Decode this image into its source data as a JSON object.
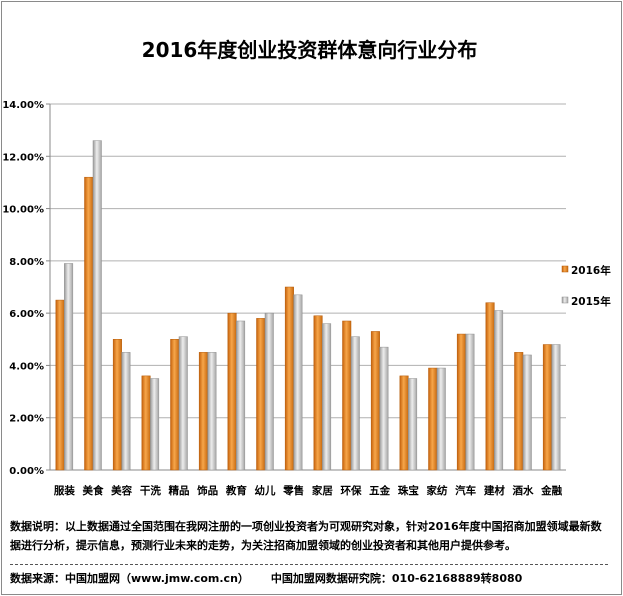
{
  "chart_data": {
    "type": "bar",
    "title": "2016年度创业投资群体意向行业分布",
    "categories": [
      "服装",
      "美食",
      "美容",
      "干洗",
      "精品",
      "饰品",
      "教育",
      "幼儿",
      "零售",
      "家居",
      "环保",
      "五金",
      "珠宝",
      "家纺",
      "汽车",
      "建材",
      "酒水",
      "金融"
    ],
    "series": [
      {
        "name": "2016年",
        "color": "#e8841c",
        "values": [
          6.5,
          11.2,
          5.0,
          3.6,
          5.0,
          4.5,
          6.0,
          5.8,
          7.0,
          5.9,
          5.7,
          5.3,
          3.6,
          3.9,
          5.2,
          6.4,
          4.5,
          4.8
        ]
      },
      {
        "name": "2015年",
        "color": "#b4b4b4",
        "values": [
          7.9,
          12.6,
          4.5,
          3.5,
          5.1,
          4.5,
          5.7,
          6.0,
          6.7,
          5.6,
          5.1,
          4.7,
          3.5,
          3.9,
          5.2,
          6.1,
          4.4,
          4.8
        ]
      }
    ],
    "ylim": [
      0,
      14
    ],
    "yticks": [
      "0.00%",
      "2.00%",
      "4.00%",
      "6.00%",
      "8.00%",
      "10.00%",
      "12.00%",
      "14.00%"
    ],
    "grid": true,
    "legend_position": "right"
  },
  "note": "数据说明：以上数据通过全国范围在我网注册的一项创业投资者为可观研究对象，针对2016年度中国招商加盟领域最新数据进行分析，提示信息，预测行业未来的走势，为关注招商加盟领域的创业投资者和其他用户提供参考。",
  "source": {
    "label": "数据来源：中国加盟网（www.jmw.com.cn）",
    "institute": "中国加盟网数据研究院：010-62168889转8080"
  }
}
